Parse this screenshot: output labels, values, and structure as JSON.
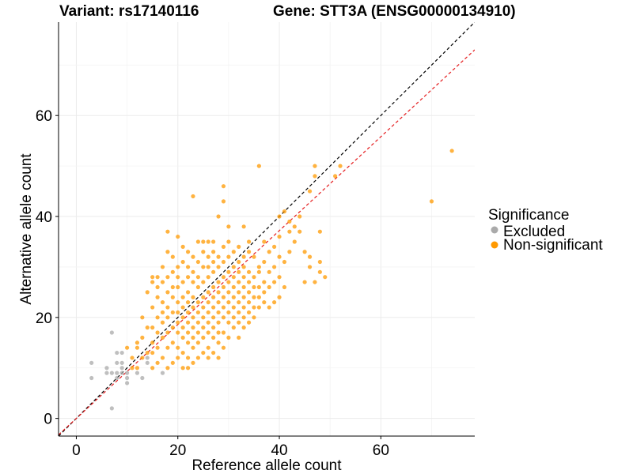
{
  "header": {
    "variant": "Variant: rs17140116",
    "gene": "Gene: STT3A (ENSG00000134910)"
  },
  "chart_data": {
    "type": "scatter",
    "xlabel": "Reference allele count",
    "ylabel": "Alternative allele count",
    "xlim": [
      -3.5,
      78.5
    ],
    "ylim": [
      -3.5,
      78.5
    ],
    "xticks": [
      0,
      20,
      40,
      60
    ],
    "yticks": [
      0,
      20,
      40,
      60
    ],
    "grid": true,
    "legend_position": "right",
    "legend": {
      "title": "Significance",
      "entries": [
        {
          "label": "Excluded",
          "color": "#aaaaaa"
        },
        {
          "label": "Non-significant",
          "color": "#ff9900"
        }
      ]
    },
    "reference_lines": [
      {
        "slope": 1.0,
        "intercept": 0,
        "color": "#000000",
        "style": "dashed"
      },
      {
        "slope": 0.93,
        "intercept": 0,
        "color": "#e41a1c",
        "style": "dashed"
      }
    ],
    "series": [
      {
        "name": "Excluded",
        "color": "#aaaaaa",
        "points": [
          [
            3,
            11
          ],
          [
            3,
            8
          ],
          [
            6,
            10
          ],
          [
            6,
            9
          ],
          [
            7,
            17
          ],
          [
            7,
            2
          ],
          [
            7,
            9
          ],
          [
            8,
            8
          ],
          [
            8,
            9
          ],
          [
            8,
            11
          ],
          [
            8,
            13
          ],
          [
            9,
            13
          ],
          [
            9,
            10
          ],
          [
            9,
            11
          ],
          [
            9,
            9
          ],
          [
            10,
            8
          ],
          [
            10,
            7
          ],
          [
            10,
            9
          ],
          [
            12,
            9
          ],
          [
            13,
            8
          ],
          [
            14,
            11
          ],
          [
            14,
            12
          ],
          [
            17,
            9
          ]
        ]
      },
      {
        "name": "Non-significant",
        "color": "#ff9900",
        "points": [
          [
            10,
            14
          ],
          [
            11,
            10
          ],
          [
            11,
            12
          ],
          [
            12,
            14
          ],
          [
            12,
            15
          ],
          [
            12,
            10
          ],
          [
            13,
            12
          ],
          [
            13,
            16
          ],
          [
            13,
            20
          ],
          [
            14,
            13
          ],
          [
            14,
            18
          ],
          [
            14,
            25
          ],
          [
            15,
            27
          ],
          [
            15,
            22
          ],
          [
            15,
            18
          ],
          [
            15,
            15
          ],
          [
            15,
            13
          ],
          [
            15,
            10
          ],
          [
            15,
            28
          ],
          [
            16,
            20
          ],
          [
            16,
            24
          ],
          [
            16,
            17
          ],
          [
            16,
            14
          ],
          [
            16,
            11
          ],
          [
            16,
            26
          ],
          [
            16,
            28
          ],
          [
            17,
            12
          ],
          [
            17,
            16
          ],
          [
            17,
            19
          ],
          [
            17,
            21
          ],
          [
            17,
            23
          ],
          [
            17,
            27
          ],
          [
            17,
            30
          ],
          [
            18,
            10
          ],
          [
            18,
            14
          ],
          [
            18,
            17
          ],
          [
            18,
            20
          ],
          [
            18,
            22
          ],
          [
            18,
            25
          ],
          [
            18,
            28
          ],
          [
            18,
            33
          ],
          [
            18,
            37
          ],
          [
            19,
            11
          ],
          [
            19,
            15
          ],
          [
            19,
            18
          ],
          [
            19,
            21
          ],
          [
            19,
            24
          ],
          [
            19,
            26
          ],
          [
            19,
            29
          ],
          [
            19,
            32
          ],
          [
            20,
            12
          ],
          [
            20,
            14
          ],
          [
            20,
            17
          ],
          [
            20,
            19
          ],
          [
            20,
            21
          ],
          [
            20,
            23
          ],
          [
            20,
            26
          ],
          [
            20,
            28
          ],
          [
            20,
            30
          ],
          [
            20,
            36
          ],
          [
            21,
            10
          ],
          [
            21,
            13
          ],
          [
            21,
            16
          ],
          [
            21,
            18
          ],
          [
            21,
            20
          ],
          [
            21,
            22
          ],
          [
            21,
            24
          ],
          [
            21,
            27
          ],
          [
            21,
            31
          ],
          [
            21,
            34
          ],
          [
            22,
            10
          ],
          [
            22,
            12
          ],
          [
            22,
            15
          ],
          [
            22,
            17
          ],
          [
            22,
            19
          ],
          [
            22,
            21
          ],
          [
            22,
            23
          ],
          [
            22,
            25
          ],
          [
            22,
            28
          ],
          [
            22,
            30
          ],
          [
            22,
            33
          ],
          [
            23,
            11
          ],
          [
            23,
            14
          ],
          [
            23,
            16
          ],
          [
            23,
            18
          ],
          [
            23,
            20
          ],
          [
            23,
            22
          ],
          [
            23,
            24
          ],
          [
            23,
            27
          ],
          [
            23,
            29
          ],
          [
            23,
            32
          ],
          [
            23,
            44
          ],
          [
            24,
            12
          ],
          [
            24,
            15
          ],
          [
            24,
            17
          ],
          [
            24,
            19
          ],
          [
            24,
            21
          ],
          [
            24,
            23
          ],
          [
            24,
            26
          ],
          [
            24,
            28
          ],
          [
            24,
            31
          ],
          [
            24,
            35
          ],
          [
            25,
            13
          ],
          [
            25,
            16
          ],
          [
            25,
            18
          ],
          [
            25,
            20
          ],
          [
            25,
            22
          ],
          [
            25,
            24
          ],
          [
            25,
            27
          ],
          [
            25,
            30
          ],
          [
            25,
            33
          ],
          [
            25,
            35
          ],
          [
            26,
            12
          ],
          [
            26,
            14
          ],
          [
            26,
            17
          ],
          [
            26,
            19
          ],
          [
            26,
            21
          ],
          [
            26,
            23
          ],
          [
            26,
            25
          ],
          [
            26,
            28
          ],
          [
            26,
            30
          ],
          [
            26,
            32
          ],
          [
            26,
            35
          ],
          [
            27,
            13
          ],
          [
            27,
            16
          ],
          [
            27,
            18
          ],
          [
            27,
            20
          ],
          [
            27,
            22
          ],
          [
            27,
            24
          ],
          [
            27,
            26
          ],
          [
            27,
            29
          ],
          [
            27,
            31
          ],
          [
            27,
            33
          ],
          [
            27,
            35
          ],
          [
            28,
            12
          ],
          [
            28,
            15
          ],
          [
            28,
            17
          ],
          [
            28,
            19
          ],
          [
            28,
            21
          ],
          [
            28,
            23
          ],
          [
            28,
            25
          ],
          [
            28,
            27
          ],
          [
            28,
            30
          ],
          [
            28,
            32
          ],
          [
            28,
            40
          ],
          [
            29,
            14
          ],
          [
            29,
            17
          ],
          [
            29,
            20
          ],
          [
            29,
            22
          ],
          [
            29,
            24
          ],
          [
            29,
            26
          ],
          [
            29,
            28
          ],
          [
            29,
            31
          ],
          [
            29,
            34
          ],
          [
            29,
            43
          ],
          [
            29,
            46
          ],
          [
            30,
            16
          ],
          [
            30,
            19
          ],
          [
            30,
            21
          ],
          [
            30,
            23
          ],
          [
            30,
            25
          ],
          [
            30,
            27
          ],
          [
            30,
            29
          ],
          [
            30,
            32
          ],
          [
            30,
            35
          ],
          [
            30,
            38
          ],
          [
            31,
            18
          ],
          [
            31,
            20
          ],
          [
            31,
            22
          ],
          [
            31,
            24
          ],
          [
            31,
            26
          ],
          [
            31,
            28
          ],
          [
            31,
            30
          ],
          [
            31,
            33
          ],
          [
            32,
            16
          ],
          [
            32,
            19
          ],
          [
            32,
            21
          ],
          [
            32,
            23
          ],
          [
            32,
            25
          ],
          [
            32,
            27
          ],
          [
            32,
            29
          ],
          [
            32,
            31
          ],
          [
            32,
            34
          ],
          [
            33,
            18
          ],
          [
            33,
            20
          ],
          [
            33,
            22
          ],
          [
            33,
            24
          ],
          [
            33,
            26
          ],
          [
            33,
            28
          ],
          [
            33,
            30
          ],
          [
            33,
            32
          ],
          [
            33,
            38
          ],
          [
            34,
            19
          ],
          [
            34,
            21
          ],
          [
            34,
            23
          ],
          [
            34,
            25
          ],
          [
            34,
            27
          ],
          [
            34,
            29
          ],
          [
            34,
            33
          ],
          [
            34,
            35
          ],
          [
            35,
            20
          ],
          [
            35,
            22
          ],
          [
            35,
            24
          ],
          [
            35,
            26
          ],
          [
            35,
            28
          ],
          [
            35,
            32
          ],
          [
            36,
            22
          ],
          [
            36,
            24
          ],
          [
            36,
            26
          ],
          [
            36,
            29
          ],
          [
            36,
            30
          ],
          [
            36,
            50
          ],
          [
            37,
            23
          ],
          [
            37,
            25
          ],
          [
            37,
            27
          ],
          [
            37,
            31
          ],
          [
            37,
            35
          ],
          [
            38,
            22
          ],
          [
            38,
            26
          ],
          [
            38,
            29
          ],
          [
            38,
            33
          ],
          [
            39,
            23
          ],
          [
            39,
            27
          ],
          [
            39,
            30
          ],
          [
            39,
            34
          ],
          [
            40,
            24
          ],
          [
            40,
            28
          ],
          [
            40,
            32
          ],
          [
            40,
            36
          ],
          [
            40,
            40
          ],
          [
            41,
            26
          ],
          [
            41,
            31
          ],
          [
            41,
            41
          ],
          [
            42,
            33
          ],
          [
            42,
            37
          ],
          [
            42,
            39
          ],
          [
            43,
            35
          ],
          [
            43,
            38
          ],
          [
            44,
            37
          ],
          [
            44,
            40
          ],
          [
            45,
            33
          ],
          [
            45,
            27
          ],
          [
            46,
            30
          ],
          [
            46,
            32
          ],
          [
            46,
            45
          ],
          [
            47,
            27
          ],
          [
            47,
            48
          ],
          [
            47,
            50
          ],
          [
            48,
            29
          ],
          [
            48,
            37
          ],
          [
            48,
            31
          ],
          [
            49,
            28
          ],
          [
            51,
            48
          ],
          [
            52,
            50
          ],
          [
            70,
            43
          ],
          [
            74,
            53
          ]
        ]
      }
    ]
  }
}
